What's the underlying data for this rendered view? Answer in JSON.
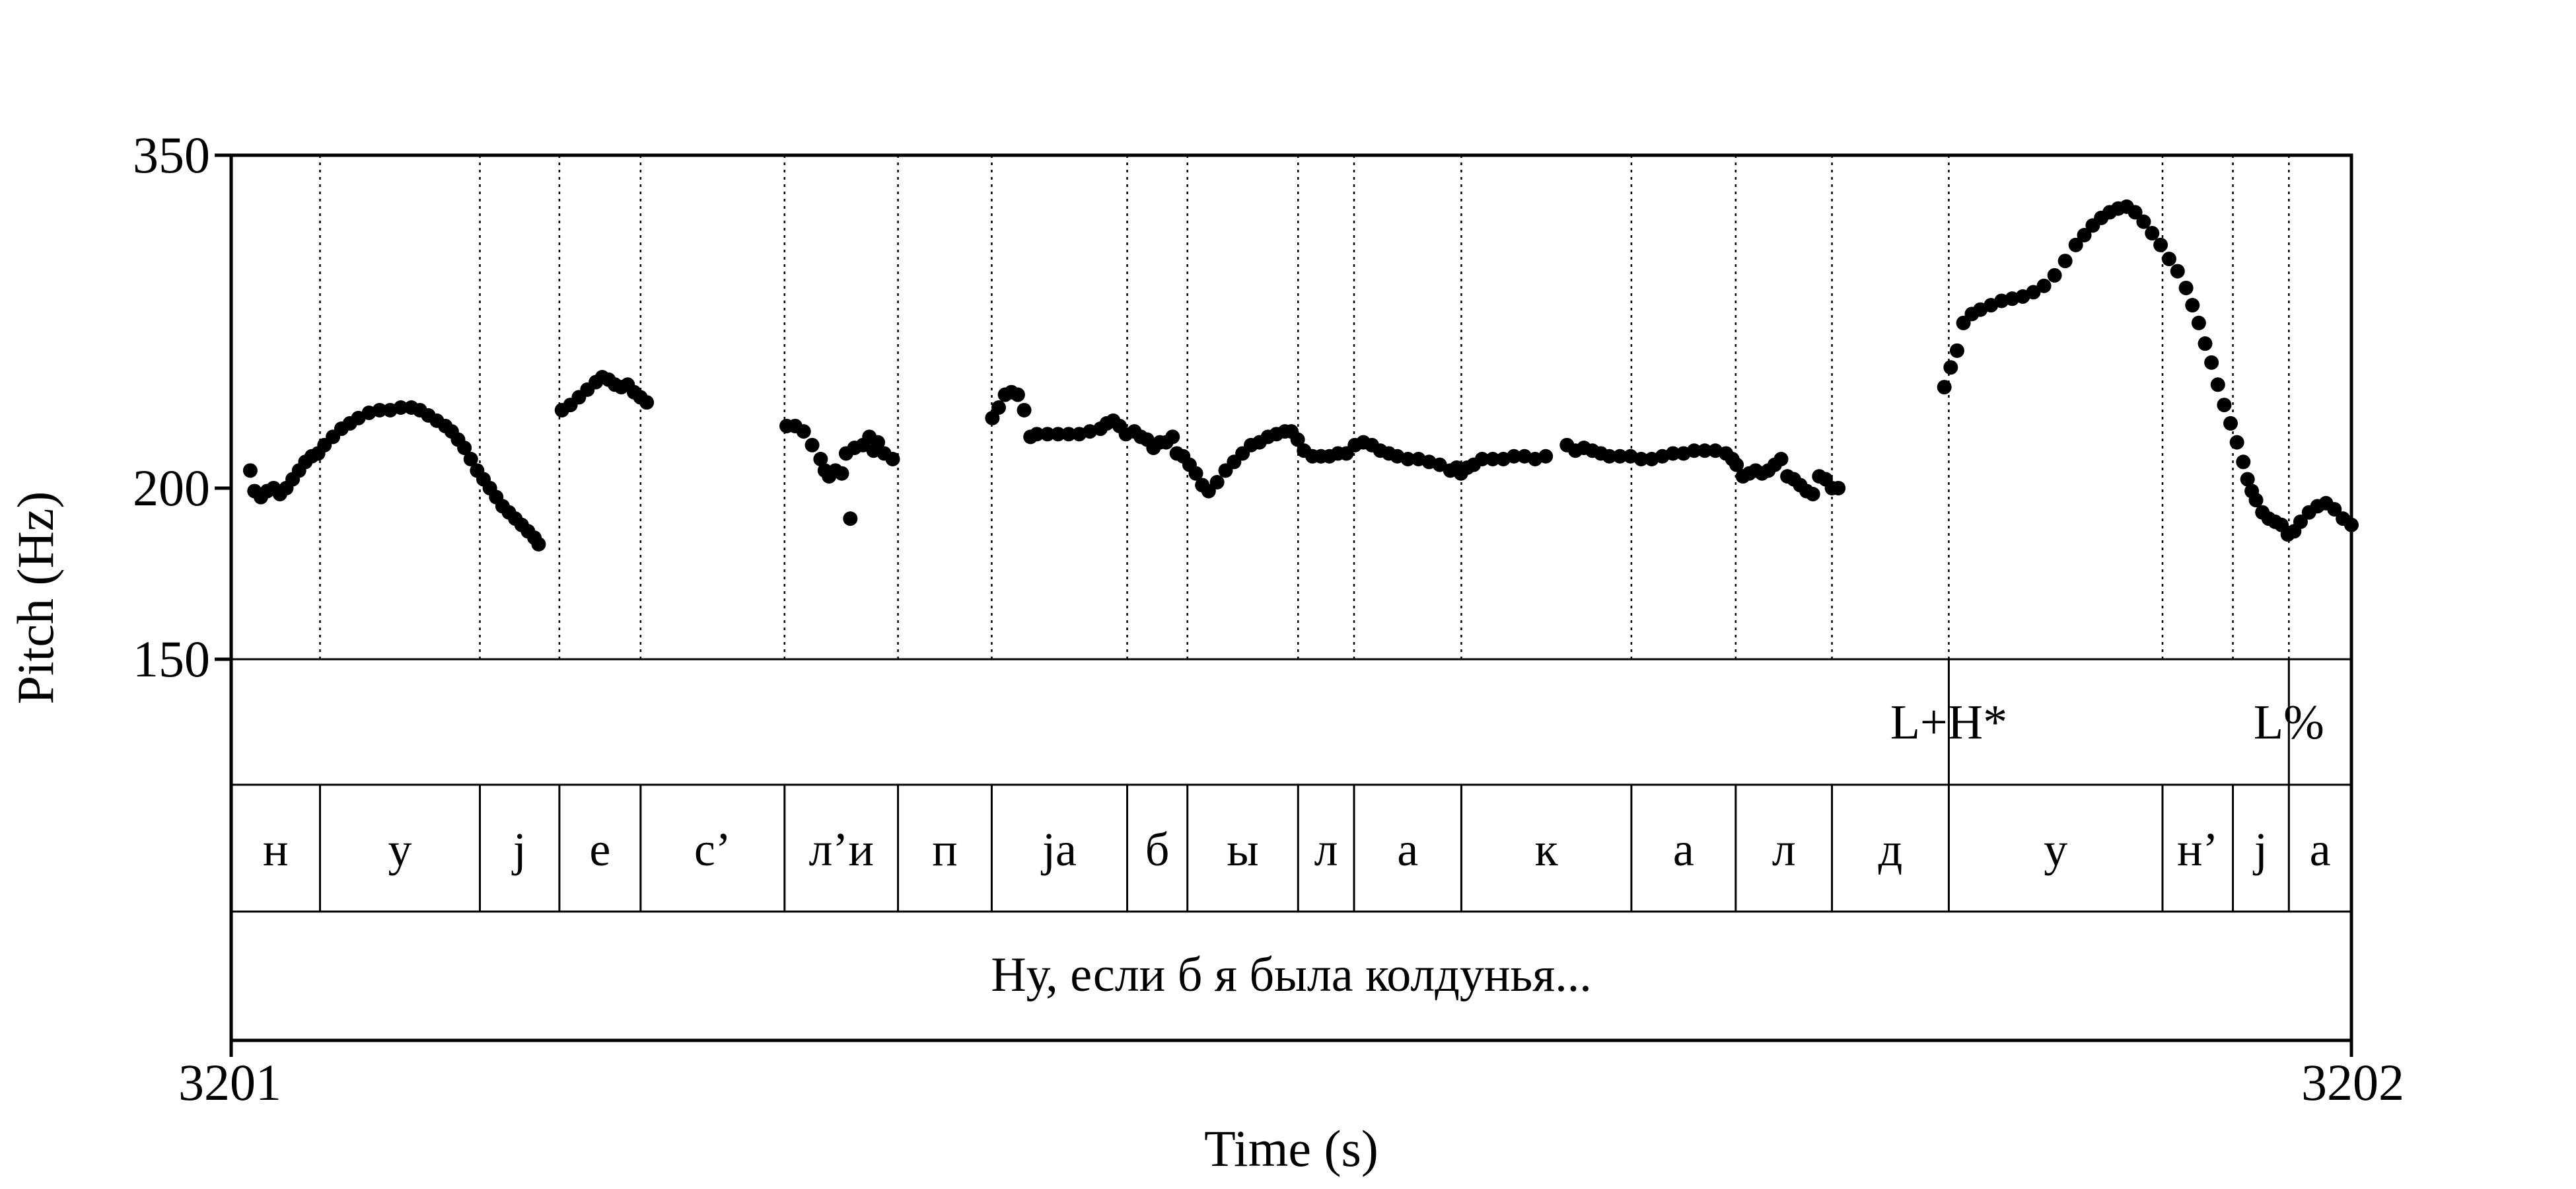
{
  "chart_data": {
    "type": "scatter",
    "title": "",
    "xlabel": "Time (s)",
    "ylabel": "Pitch (Hz)",
    "xlim": [
      3201,
      3202
    ],
    "ylim": [
      150,
      350
    ],
    "x_ticks": [
      "3201",
      "3202"
    ],
    "y_ticks": [
      "350",
      "200",
      "150"
    ],
    "y_tick_values": [
      350,
      200,
      150
    ],
    "y_scale": "log",
    "grid": false,
    "segment_boundaries": [
      3201.0419,
      3201.1173,
      3201.1548,
      3201.1931,
      3201.261,
      3201.3145,
      3201.3587,
      3201.4226,
      3201.451,
      3201.5032,
      3201.5296,
      3201.5802,
      3201.6604,
      3201.7096,
      3201.755,
      3201.8101,
      3201.9109,
      3201.9441,
      3201.9705
    ],
    "tone_tier": [
      {
        "label": "L+H*",
        "t": 3201.8101
      },
      {
        "label": "L%",
        "t": 3201.9705
      }
    ],
    "segment_tier": [
      "н",
      "у",
      "j",
      "е",
      "с’",
      "л’и",
      "п",
      "jа",
      "б",
      "ы",
      "л",
      "а",
      "к",
      "а",
      "л",
      "д",
      "у",
      "н’",
      "j",
      "а"
    ],
    "sentence_tier": "Ну, если б я была колдунья...",
    "series": [
      {
        "points": [
          [
            3201.009,
            206
          ],
          [
            3201.011,
            199
          ],
          [
            3201.014,
            197
          ],
          [
            3201.017,
            199
          ],
          [
            3201.02,
            200
          ],
          [
            3201.023,
            198
          ],
          [
            3201.026,
            200
          ],
          [
            3201.029,
            203
          ],
          [
            3201.032,
            206
          ],
          [
            3201.035,
            209
          ],
          [
            3201.038,
            211
          ],
          [
            3201.041,
            212
          ],
          [
            3201.044,
            215
          ],
          [
            3201.048,
            218
          ],
          [
            3201.052,
            221
          ],
          [
            3201.056,
            223
          ],
          [
            3201.06,
            225
          ],
          [
            3201.065,
            227
          ],
          [
            3201.07,
            228
          ],
          [
            3201.075,
            228
          ],
          [
            3201.08,
            229
          ],
          [
            3201.085,
            229
          ],
          [
            3201.089,
            228
          ],
          [
            3201.093,
            226
          ],
          [
            3201.097,
            224
          ],
          [
            3201.101,
            222
          ],
          [
            3201.104,
            220
          ],
          [
            3201.107,
            217
          ],
          [
            3201.11,
            214
          ],
          [
            3201.113,
            210
          ],
          [
            3201.116,
            206
          ],
          [
            3201.119,
            203
          ],
          [
            3201.122,
            200
          ],
          [
            3201.125,
            197
          ],
          [
            3201.128,
            194
          ],
          [
            3201.131,
            192
          ],
          [
            3201.134,
            190
          ],
          [
            3201.137,
            188
          ],
          [
            3201.14,
            186
          ],
          [
            3201.143,
            184
          ],
          [
            3201.145,
            182
          ],
          [
            3201.156,
            228
          ],
          [
            3201.16,
            230
          ],
          [
            3201.164,
            233
          ],
          [
            3201.168,
            236
          ],
          [
            3201.172,
            239
          ],
          [
            3201.175,
            241
          ],
          [
            3201.178,
            240
          ],
          [
            3201.181,
            238
          ],
          [
            3201.184,
            237
          ],
          [
            3201.187,
            238
          ],
          [
            3201.19,
            235
          ],
          [
            3201.193,
            233
          ],
          [
            3201.196,
            231
          ],
          [
            3201.262,
            222
          ],
          [
            3201.266,
            222
          ],
          [
            3201.27,
            220
          ],
          [
            3201.274,
            215
          ],
          [
            3201.278,
            210
          ],
          [
            3201.28,
            206
          ],
          [
            3201.282,
            204
          ],
          [
            3201.285,
            206
          ],
          [
            3201.288,
            205
          ],
          [
            3201.29,
            212
          ],
          [
            3201.292,
            190
          ],
          [
            3201.294,
            214
          ],
          [
            3201.298,
            215
          ],
          [
            3201.301,
            218
          ],
          [
            3201.303,
            213
          ],
          [
            3201.305,
            216
          ],
          [
            3201.308,
            212
          ],
          [
            3201.312,
            210
          ],
          [
            3201.359,
            225
          ],
          [
            3201.362,
            229
          ],
          [
            3201.365,
            234
          ],
          [
            3201.368,
            235
          ],
          [
            3201.371,
            234
          ],
          [
            3201.374,
            228
          ],
          [
            3201.377,
            218
          ],
          [
            3201.38,
            219
          ],
          [
            3201.385,
            219
          ],
          [
            3201.39,
            219
          ],
          [
            3201.395,
            219
          ],
          [
            3201.4,
            219
          ],
          [
            3201.405,
            220
          ],
          [
            3201.41,
            221
          ],
          [
            3201.413,
            223
          ],
          [
            3201.416,
            224
          ],
          [
            3201.419,
            222
          ],
          [
            3201.422,
            219
          ],
          [
            3201.426,
            220
          ],
          [
            3201.429,
            218
          ],
          [
            3201.432,
            217
          ],
          [
            3201.435,
            214
          ],
          [
            3201.438,
            216
          ],
          [
            3201.441,
            216
          ],
          [
            3201.444,
            218
          ],
          [
            3201.446,
            212
          ],
          [
            3201.449,
            211
          ],
          [
            3201.452,
            208
          ],
          [
            3201.455,
            205
          ],
          [
            3201.458,
            201
          ],
          [
            3201.461,
            199
          ],
          [
            3201.465,
            202
          ],
          [
            3201.469,
            206
          ],
          [
            3201.473,
            209
          ],
          [
            3201.477,
            212
          ],
          [
            3201.481,
            215
          ],
          [
            3201.485,
            216
          ],
          [
            3201.489,
            218
          ],
          [
            3201.493,
            219
          ],
          [
            3201.497,
            220
          ],
          [
            3201.5,
            220
          ],
          [
            3201.503,
            217
          ],
          [
            3201.506,
            213
          ],
          [
            3201.51,
            211
          ],
          [
            3201.514,
            211
          ],
          [
            3201.518,
            211
          ],
          [
            3201.522,
            212
          ],
          [
            3201.526,
            212
          ],
          [
            3201.53,
            215
          ],
          [
            3201.534,
            216
          ],
          [
            3201.538,
            215
          ],
          [
            3201.542,
            213
          ],
          [
            3201.546,
            212
          ],
          [
            3201.55,
            211
          ],
          [
            3201.555,
            210
          ],
          [
            3201.56,
            210
          ],
          [
            3201.565,
            209
          ],
          [
            3201.57,
            208
          ],
          [
            3201.575,
            206
          ],
          [
            3201.578,
            207
          ],
          [
            3201.58,
            205
          ],
          [
            3201.583,
            207
          ],
          [
            3201.586,
            208
          ],
          [
            3201.59,
            210
          ],
          [
            3201.595,
            210
          ],
          [
            3201.6,
            210
          ],
          [
            3201.605,
            211
          ],
          [
            3201.61,
            211
          ],
          [
            3201.615,
            210
          ],
          [
            3201.62,
            211
          ],
          [
            3201.63,
            215
          ],
          [
            3201.634,
            213
          ],
          [
            3201.638,
            214
          ],
          [
            3201.642,
            213
          ],
          [
            3201.646,
            212
          ],
          [
            3201.65,
            211
          ],
          [
            3201.655,
            211
          ],
          [
            3201.66,
            211
          ],
          [
            3201.665,
            210
          ],
          [
            3201.67,
            210
          ],
          [
            3201.675,
            211
          ],
          [
            3201.68,
            212
          ],
          [
            3201.685,
            212
          ],
          [
            3201.69,
            213
          ],
          [
            3201.695,
            213
          ],
          [
            3201.7,
            213
          ],
          [
            3201.705,
            212
          ],
          [
            3201.708,
            210
          ],
          [
            3201.71,
            208
          ],
          [
            3201.713,
            204
          ],
          [
            3201.716,
            205
          ],
          [
            3201.719,
            206
          ],
          [
            3201.722,
            205
          ],
          [
            3201.725,
            206
          ],
          [
            3201.728,
            208
          ],
          [
            3201.731,
            210
          ],
          [
            3201.734,
            204
          ],
          [
            3201.737,
            203
          ],
          [
            3201.74,
            201
          ],
          [
            3201.743,
            199
          ],
          [
            3201.746,
            198
          ],
          [
            3201.749,
            204
          ],
          [
            3201.752,
            203
          ],
          [
            3201.755,
            200
          ],
          [
            3201.758,
            200
          ],
          [
            3201.808,
            237
          ],
          [
            3201.811,
            245
          ],
          [
            3201.814,
            252
          ],
          [
            3201.817,
            264
          ],
          [
            3201.821,
            268
          ],
          [
            3201.825,
            270
          ],
          [
            3201.83,
            272
          ],
          [
            3201.835,
            274
          ],
          [
            3201.84,
            275
          ],
          [
            3201.845,
            276
          ],
          [
            3201.85,
            278
          ],
          [
            3201.855,
            281
          ],
          [
            3201.86,
            286
          ],
          [
            3201.865,
            293
          ],
          [
            3201.87,
            301
          ],
          [
            3201.874,
            306
          ],
          [
            3201.878,
            311
          ],
          [
            3201.882,
            315
          ],
          [
            3201.886,
            318
          ],
          [
            3201.89,
            320
          ],
          [
            3201.894,
            321
          ],
          [
            3201.898,
            318
          ],
          [
            3201.902,
            313
          ],
          [
            3201.906,
            307
          ],
          [
            3201.91,
            301
          ],
          [
            3201.914,
            294
          ],
          [
            3201.918,
            288
          ],
          [
            3201.922,
            280
          ],
          [
            3201.925,
            272
          ],
          [
            3201.928,
            264
          ],
          [
            3201.931,
            255
          ],
          [
            3201.934,
            247
          ],
          [
            3201.937,
            238
          ],
          [
            3201.94,
            230
          ],
          [
            3201.943,
            223
          ],
          [
            3201.946,
            216
          ],
          [
            3201.949,
            209
          ],
          [
            3201.951,
            203
          ],
          [
            3201.953,
            199
          ],
          [
            3201.955,
            196
          ],
          [
            3201.958,
            192
          ],
          [
            3201.961,
            190
          ],
          [
            3201.964,
            189
          ],
          [
            3201.967,
            188
          ],
          [
            3201.97,
            185
          ],
          [
            3201.973,
            186
          ],
          [
            3201.976,
            189
          ],
          [
            3201.98,
            192
          ],
          [
            3201.984,
            194
          ],
          [
            3201.988,
            195
          ],
          [
            3201.992,
            193
          ],
          [
            3201.996,
            190
          ],
          [
            3202.0,
            188
          ]
        ]
      }
    ]
  }
}
